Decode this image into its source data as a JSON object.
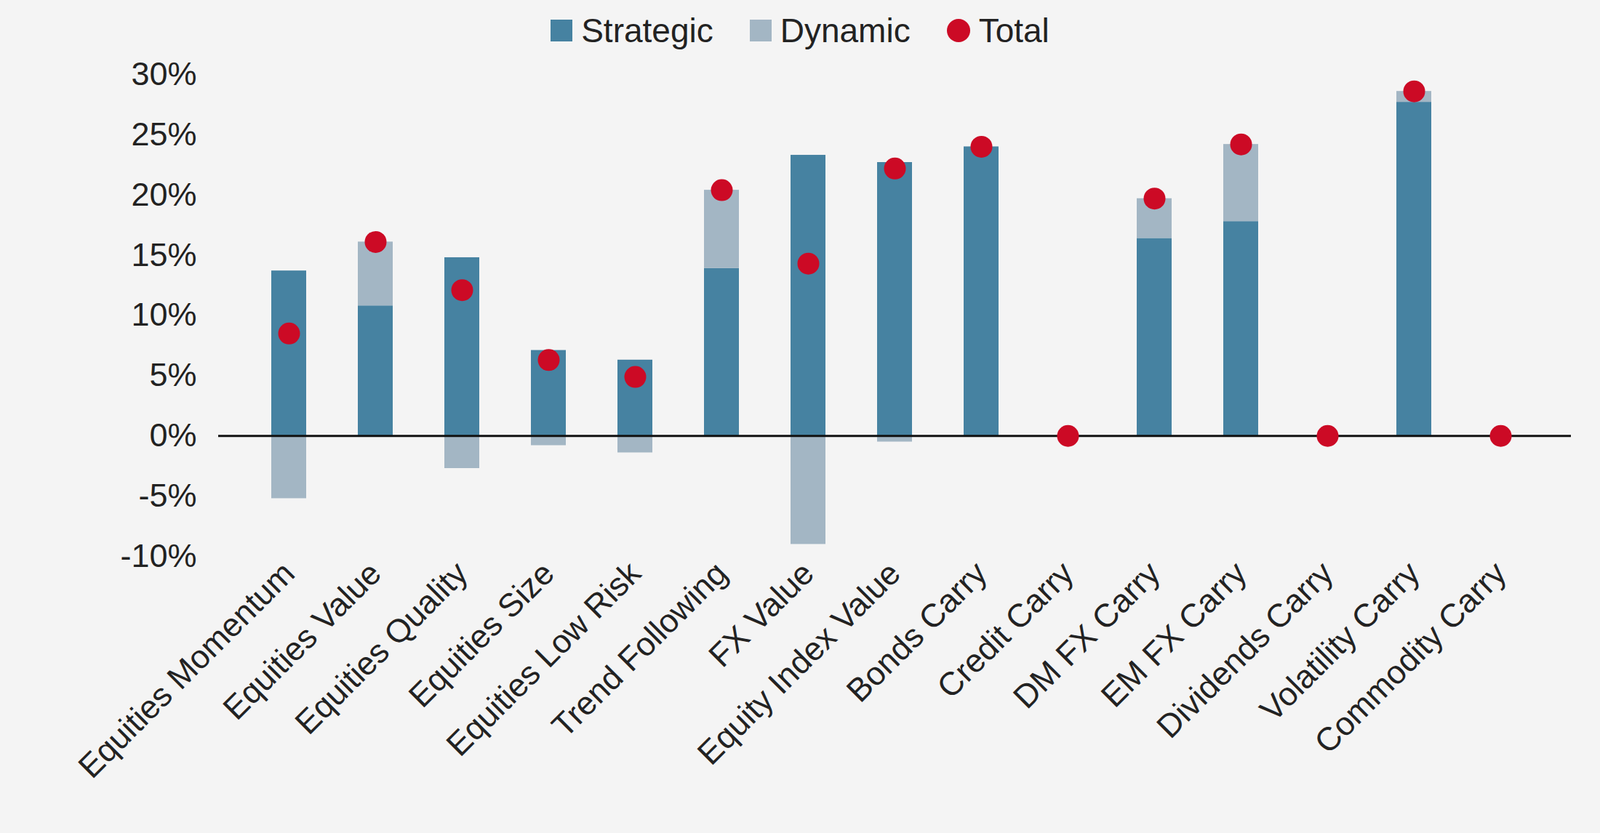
{
  "chart_data": {
    "type": "bar",
    "stacked": true,
    "legend": "top",
    "categories": [
      "Equities Momentum",
      "Equities Value",
      "Equities Quality",
      "Equities Size",
      "Equities Low Risk",
      "Trend Following",
      "FX Value",
      "Equity Index Value",
      "Bonds Carry",
      "Credit Carry",
      "DM FX Carry",
      "EM FX Carry",
      "Dividends Carry",
      "Volatility Carry",
      "Commodity Carry"
    ],
    "series": [
      {
        "name": "Strategic",
        "type": "bar",
        "color": "#4682a1",
        "values": [
          13.7,
          10.8,
          14.8,
          7.1,
          6.3,
          13.9,
          23.3,
          22.7,
          24.0,
          0,
          16.4,
          17.8,
          0,
          27.7,
          0
        ]
      },
      {
        "name": "Dynamic",
        "type": "bar",
        "color": "#a3b6c4",
        "values": [
          -5.2,
          5.3,
          -2.7,
          -0.8,
          -1.4,
          6.5,
          -9.0,
          -0.5,
          0,
          0,
          3.3,
          6.4,
          0,
          0.9,
          0
        ]
      },
      {
        "name": "Total",
        "type": "scatter",
        "marker": "circle",
        "color": "#cc0a25",
        "values": [
          8.5,
          16.1,
          12.1,
          6.3,
          4.9,
          20.4,
          14.3,
          22.2,
          24.0,
          0,
          19.7,
          24.2,
          0,
          28.6,
          0
        ]
      }
    ],
    "ylim": [
      -10,
      30
    ],
    "yticks": [
      {
        "value": -10,
        "label": "-10%"
      },
      {
        "value": -5,
        "label": "-5%"
      },
      {
        "value": 0,
        "label": "0%"
      },
      {
        "value": 5,
        "label": "5%"
      },
      {
        "value": 10,
        "label": "10%"
      },
      {
        "value": 15,
        "label": "15%"
      },
      {
        "value": 20,
        "label": "20%"
      },
      {
        "value": 25,
        "label": "25%"
      },
      {
        "value": 30,
        "label": "30%"
      }
    ],
    "grid": false
  }
}
